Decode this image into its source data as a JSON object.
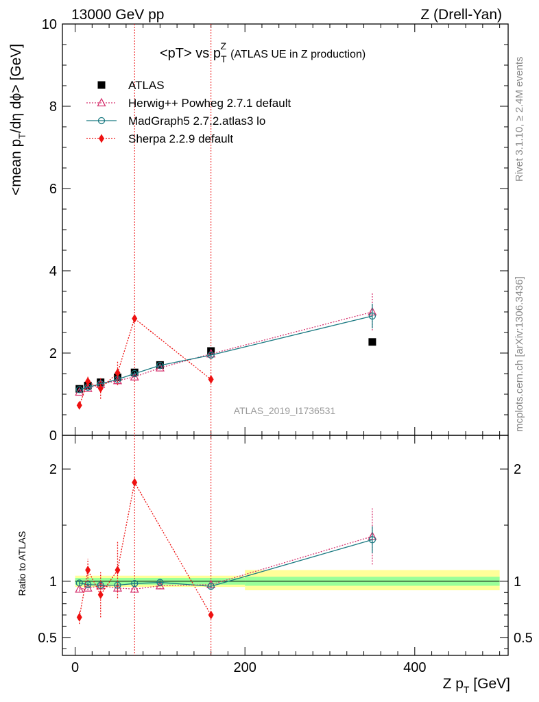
{
  "header": {
    "energy_label": "13000 GeV pp",
    "process_label": "Z (Drell-Yan)"
  },
  "side_labels": {
    "rivet": "Rivet 3.1.10, ≥ 2.4M events",
    "mcplots": "mcplots.cern.ch [arXiv:1306.3436]"
  },
  "analysis_id": "ATLAS_2019_I1736531",
  "chart_data": [
    {
      "type": "scatter",
      "panel": "main",
      "title": "<pT> vs p",
      "title_sub": "T",
      "title_sup": "Z",
      "title_note": "(ATLAS UE in Z production)",
      "ylabel": "<mean p",
      "ylabel_sub": "T",
      "ylabel_tail": "/dη dϕ> [GeV]",
      "xlim": [
        -15,
        510
      ],
      "ylim": [
        0,
        10
      ],
      "yticks": [
        0,
        2,
        4,
        6,
        8,
        10
      ],
      "grid": false,
      "legend_position": "top-left",
      "x": [
        5,
        15,
        30,
        50,
        70,
        100,
        160,
        350
      ],
      "series": [
        {
          "name": "ATLAS",
          "color": "#000000",
          "marker": "square",
          "line": "none",
          "values": [
            1.13,
            1.21,
            1.29,
            1.41,
            1.53,
            1.71,
            2.05,
            2.27
          ],
          "errors": [
            0.03,
            0.03,
            0.03,
            0.04,
            0.04,
            0.05,
            0.06,
            0.07
          ]
        },
        {
          "name": "Herwig++ Powheg 2.7.1 default",
          "color": "#d6336f",
          "marker": "triangle-open",
          "line": "dotted",
          "values": [
            1.05,
            1.14,
            1.24,
            1.33,
            1.42,
            1.64,
            1.98,
            3.0
          ],
          "errors": [
            0.02,
            0.02,
            0.03,
            0.03,
            0.04,
            0.04,
            0.07,
            0.45
          ]
        },
        {
          "name": "MadGraph5 2.7.2.atlas3 lo",
          "color": "#1b7a82",
          "marker": "circle-open",
          "line": "solid",
          "values": [
            1.11,
            1.17,
            1.25,
            1.36,
            1.5,
            1.7,
            1.95,
            2.9
          ],
          "errors": [
            0.02,
            0.02,
            0.03,
            0.03,
            0.04,
            0.04,
            0.06,
            0.3
          ]
        },
        {
          "name": "Sherpa 2.2.9 default",
          "color": "#ee1111",
          "marker": "diamond",
          "line": "dotted",
          "values": [
            0.73,
            1.31,
            1.14,
            1.52,
            2.84,
            null,
            1.36,
            null
          ],
          "errors": [
            0.08,
            0.12,
            0.25,
            0.3,
            0.0,
            0,
            0.0,
            0
          ]
        }
      ]
    },
    {
      "type": "scatter",
      "panel": "ratio",
      "ylabel": "Ratio to ATLAS",
      "xlabel": "Z p",
      "xlabel_sub": "T",
      "xlabel_tail": " [GeV]",
      "xlim": [
        -15,
        510
      ],
      "ylim": [
        0.34,
        2.3
      ],
      "yticks": [
        0.5,
        1,
        2
      ],
      "xticks": [
        0,
        200,
        400
      ],
      "grid": false,
      "x": [
        5,
        15,
        30,
        50,
        70,
        100,
        160,
        350
      ],
      "bands": [
        {
          "x_from": 0,
          "x_to": 200,
          "inner": [
            0.97,
            1.03
          ],
          "outer": [
            0.95,
            1.05
          ]
        },
        {
          "x_from": 200,
          "x_to": 500,
          "inner": [
            0.96,
            1.04
          ],
          "outer": [
            0.92,
            1.1
          ]
        }
      ],
      "series": [
        {
          "name": "Herwig++ Powheg 2.7.1 default",
          "color": "#d6336f",
          "marker": "triangle-open",
          "line": "dotted",
          "values": [
            0.93,
            0.94,
            0.96,
            0.94,
            0.93,
            0.96,
            0.97,
            1.4
          ],
          "errors": [
            0.02,
            0.02,
            0.03,
            0.03,
            0.03,
            0.03,
            0.04,
            0.25
          ]
        },
        {
          "name": "MadGraph5 2.7.2.atlas3 lo",
          "color": "#1b7a82",
          "marker": "circle-open",
          "line": "solid",
          "values": [
            0.985,
            0.97,
            0.965,
            0.965,
            0.98,
            0.99,
            0.955,
            1.37
          ],
          "errors": [
            0.02,
            0.02,
            0.02,
            0.02,
            0.03,
            0.03,
            0.03,
            0.12
          ]
        },
        {
          "name": "Sherpa 2.2.9 default",
          "color": "#ee1111",
          "marker": "diamond",
          "line": "dotted",
          "values": [
            0.68,
            1.1,
            0.88,
            1.1,
            1.88,
            null,
            0.7,
            null
          ],
          "errors": [
            0.06,
            0.1,
            0.2,
            0.25,
            0.0,
            0,
            0.0,
            0
          ]
        }
      ]
    }
  ]
}
